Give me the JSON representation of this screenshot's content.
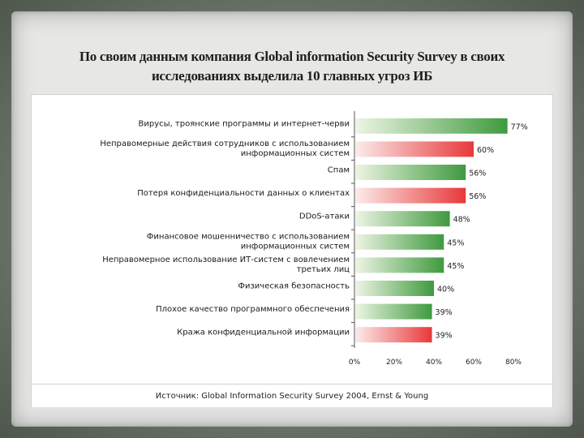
{
  "slide": {
    "title_line1": "По своим данным компания Global information Security Survey в своих",
    "title_line2": "исследованиях выделила 10 главных угроз ИБ"
  },
  "chart_data": {
    "type": "bar",
    "orientation": "horizontal",
    "categories": [
      [
        "Вирусы, троянские программы и интернет-черви"
      ],
      [
        "Неправомерные действия сотрудников с использованием",
        "информационных систем"
      ],
      [
        "Спам"
      ],
      [
        "Потеря конфиденциальности данных о клиентах"
      ],
      [
        "DDoS-атаки"
      ],
      [
        "Финансовое мошенничество с использованием",
        "информационных систем"
      ],
      [
        "Неправомерное использование ИТ-систем с вовлечением",
        "третьих лиц"
      ],
      [
        "Физическая безопасность"
      ],
      [
        "Плохое качество программного обеспечения"
      ],
      [
        "Кража конфиденциальной информации"
      ]
    ],
    "values": [
      77,
      60,
      56,
      56,
      48,
      45,
      45,
      40,
      39,
      39
    ],
    "value_labels": [
      "77%",
      "60%",
      "56%",
      "56%",
      "48%",
      "45%",
      "45%",
      "40%",
      "39%",
      "39%"
    ],
    "bar_colors": [
      "green",
      "red",
      "green",
      "red",
      "green",
      "green",
      "green",
      "green",
      "green",
      "red"
    ],
    "xlim": [
      0,
      80
    ],
    "x_ticks": [
      0,
      20,
      40,
      60,
      80
    ],
    "x_tick_labels": [
      "0%",
      "20%",
      "40%",
      "60%",
      "80%"
    ],
    "grid": false,
    "legend": "none"
  },
  "colors": {
    "green_dark": "#3f9a3f",
    "green_light": "#eef5e4",
    "red_dark": "#e8383a",
    "red_light": "#fbecea"
  },
  "source": {
    "text": "Источник: Global Information Security Survey 2004, Ernst & Young"
  }
}
